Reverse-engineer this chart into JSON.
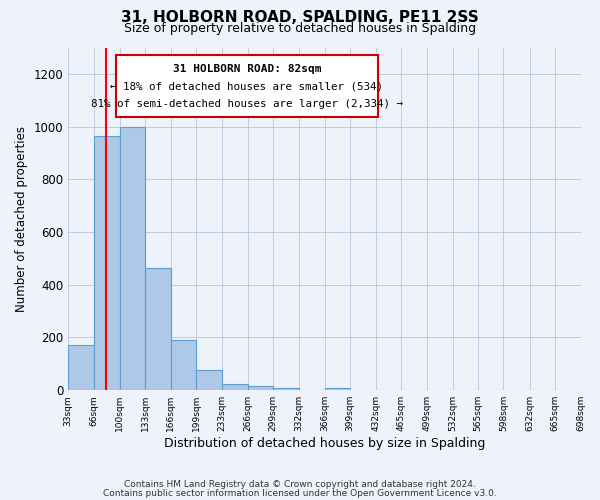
{
  "title": "31, HOLBORN ROAD, SPALDING, PE11 2SS",
  "subtitle": "Size of property relative to detached houses in Spalding",
  "xlabel": "Distribution of detached houses by size in Spalding",
  "ylabel": "Number of detached properties",
  "bar_color": "#aec8e8",
  "bar_edge_color": "#5a9fd4",
  "background_color": "#eef2fa",
  "annotation_box_color": "#ffffff",
  "annotation_box_edge": "#cc0000",
  "red_line_x": 82,
  "annotation_title": "31 HOLBORN ROAD: 82sqm",
  "annotation_line1": "← 18% of detached houses are smaller (534)",
  "annotation_line2": "81% of semi-detached houses are larger (2,334) →",
  "bins": [
    33,
    66,
    100,
    133,
    166,
    199,
    233,
    266,
    299,
    332,
    366,
    399,
    432,
    465,
    499,
    532,
    565,
    598,
    632,
    665,
    698
  ],
  "counts": [
    170,
    965,
    1000,
    465,
    190,
    75,
    25,
    15,
    10,
    0,
    10,
    0,
    0,
    0,
    0,
    0,
    0,
    0,
    0,
    0
  ],
  "ylim": [
    0,
    1300
  ],
  "yticks": [
    0,
    200,
    400,
    600,
    800,
    1000,
    1200
  ],
  "footer1": "Contains HM Land Registry data © Crown copyright and database right 2024.",
  "footer2": "Contains public sector information licensed under the Open Government Licence v3.0."
}
